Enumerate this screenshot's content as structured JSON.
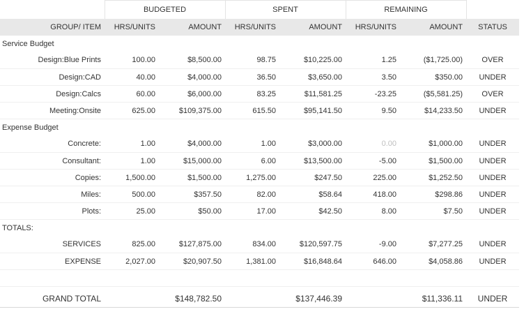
{
  "header": {
    "groups": [
      "BUDGETED",
      "SPENT",
      "REMAINING"
    ],
    "columns": {
      "item": "GROUP/ ITEM",
      "budgeted_hrs": "HRS/UNITS",
      "budgeted_amount": "AMOUNT",
      "spent_hrs": "HRS/UNITS",
      "spent_amount": "AMOUNT",
      "remaining_hrs": "HRS/UNITS",
      "remaining_amount": "AMOUNT",
      "status": "STATUS"
    }
  },
  "sections": [
    {
      "title": "Service Budget",
      "rows": [
        {
          "item": "Design:Blue Prints",
          "b_hrs": "100.00",
          "b_amt": "$8,500.00",
          "s_hrs": "98.75",
          "s_amt": "$10,225.00",
          "r_hrs": "1.25",
          "r_amt": "($1,725.00)",
          "status": "OVER"
        },
        {
          "item": "Design:CAD",
          "b_hrs": "40.00",
          "b_amt": "$4,000.00",
          "s_hrs": "36.50",
          "s_amt": "$3,650.00",
          "r_hrs": "3.50",
          "r_amt": "$350.00",
          "status": "UNDER"
        },
        {
          "item": "Design:Calcs",
          "b_hrs": "60.00",
          "b_amt": "$6,000.00",
          "s_hrs": "83.25",
          "s_amt": "$11,581.25",
          "r_hrs": "-23.25",
          "r_amt": "($5,581.25)",
          "status": "OVER"
        },
        {
          "item": "Meeting:Onsite",
          "b_hrs": "625.00",
          "b_amt": "$109,375.00",
          "s_hrs": "615.50",
          "s_amt": "$95,141.50",
          "r_hrs": "9.50",
          "r_amt": "$14,233.50",
          "status": "UNDER"
        }
      ]
    },
    {
      "title": "Expense Budget",
      "rows": [
        {
          "item": "Concrete:",
          "b_hrs": "1.00",
          "b_amt": "$4,000.00",
          "s_hrs": "1.00",
          "s_amt": "$3,000.00",
          "r_hrs": "0.00",
          "r_amt": "$1,000.00",
          "status": "UNDER"
        },
        {
          "item": "Consultant:",
          "b_hrs": "1.00",
          "b_amt": "$15,000.00",
          "s_hrs": "6.00",
          "s_amt": "$13,500.00",
          "r_hrs": "-5.00",
          "r_amt": "$1,500.00",
          "status": "UNDER"
        },
        {
          "item": "Copies:",
          "b_hrs": "1,500.00",
          "b_amt": "$1,500.00",
          "s_hrs": "1,275.00",
          "s_amt": "$247.50",
          "r_hrs": "225.00",
          "r_amt": "$1,252.50",
          "status": "UNDER"
        },
        {
          "item": "Miles:",
          "b_hrs": "500.00",
          "b_amt": "$357.50",
          "s_hrs": "82.00",
          "s_amt": "$58.64",
          "r_hrs": "418.00",
          "r_amt": "$298.86",
          "status": "UNDER"
        },
        {
          "item": "Plots:",
          "b_hrs": "25.00",
          "b_amt": "$50.00",
          "s_hrs": "17.00",
          "s_amt": "$42.50",
          "r_hrs": "8.00",
          "r_amt": "$7.50",
          "status": "UNDER"
        }
      ]
    },
    {
      "title": "TOTALS:",
      "rows": [
        {
          "item": "SERVICES",
          "b_hrs": "825.00",
          "b_amt": "$127,875.00",
          "s_hrs": "834.00",
          "s_amt": "$120,597.75",
          "r_hrs": "-9.00",
          "r_amt": "$7,277.25",
          "status": "UNDER"
        },
        {
          "item": "EXPENSE",
          "b_hrs": "2,027.00",
          "b_amt": "$20,907.50",
          "s_hrs": "1,381.00",
          "s_amt": "$16,848.64",
          "r_hrs": "646.00",
          "r_amt": "$4,058.86",
          "status": "UNDER"
        }
      ]
    }
  ],
  "grand_total": {
    "label": "GRAND TOTAL",
    "b_amt": "$148,782.50",
    "s_amt": "$137,446.39",
    "r_amt": "$11,336.11",
    "status": "UNDER"
  },
  "colors": {
    "header_band": "#e8e8e8",
    "row_border": "#efefef",
    "muted_value": "#bfbfbf"
  }
}
